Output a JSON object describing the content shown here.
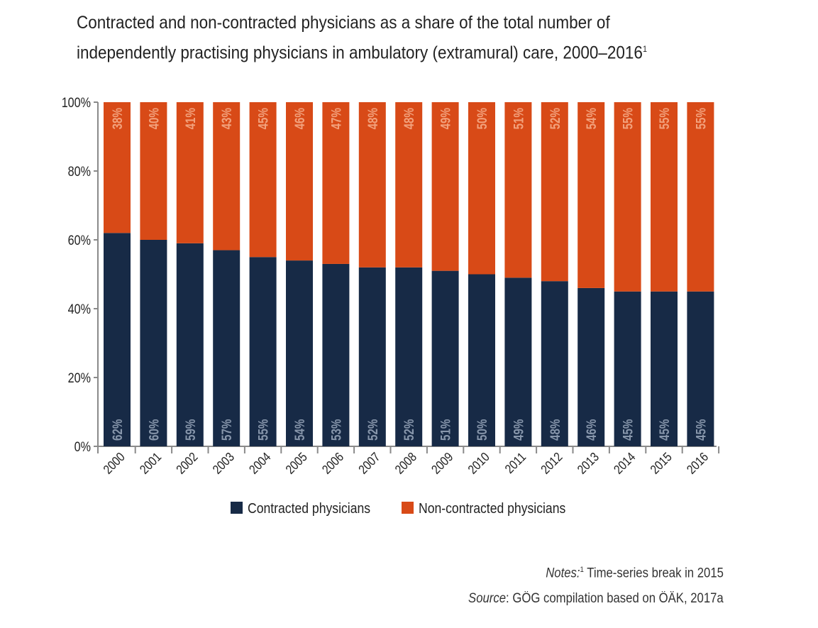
{
  "chart_data": {
    "type": "bar",
    "stacked": true,
    "title": "Contracted and non-contracted physicians as a share of the total number of independently practising physicians in ambulatory (extramural) care, 2000–2016",
    "title_line1": "Contracted and non-contracted physicians as a share of the total number   of",
    "title_line2": "independently practising physicians in ambulatory (extramural) care, 2000–2016",
    "title_sup": "1",
    "categories": [
      "2000",
      "2001",
      "2002",
      "2003",
      "2004",
      "2005",
      "2006",
      "2007",
      "2008",
      "2009",
      "2010",
      "2011",
      "2012",
      "2013",
      "2014",
      "2015",
      "2016"
    ],
    "series": [
      {
        "name": "Contracted physicians",
        "color": "#172a46",
        "label_color": "#8796ab",
        "values": [
          62,
          60,
          59,
          57,
          55,
          54,
          53,
          52,
          52,
          51,
          50,
          49,
          48,
          46,
          45,
          45,
          45
        ]
      },
      {
        "name": "Non-contracted physicians",
        "color": "#d84a17",
        "label_color": "#f2a17c",
        "values": [
          38,
          40,
          41,
          43,
          45,
          46,
          47,
          48,
          48,
          49,
          50,
          51,
          52,
          54,
          55,
          55,
          55
        ]
      }
    ],
    "ylim": [
      0,
      100
    ],
    "yticks": [
      "0%",
      "20%",
      "40%",
      "60%",
      "80%",
      "100%"
    ],
    "legend_position": "bottom"
  },
  "notes": {
    "notes_label": "Notes:",
    "notes_sup": "1",
    "notes_text": " Time-series break in 2015",
    "source_label": "Source",
    "source_text": ": GÖG compilation based on ÖÄK, 2017a"
  }
}
